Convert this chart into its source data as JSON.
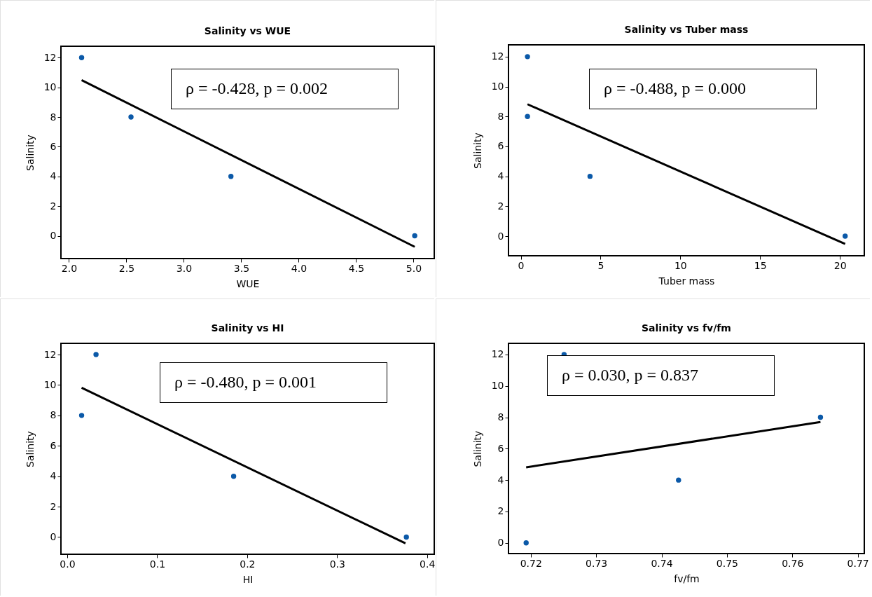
{
  "chart_data": [
    {
      "type": "scatter",
      "title": "Salinity vs WUE",
      "xlabel": "WUE",
      "ylabel": "Salinity",
      "xlim": [
        1.93,
        5.18
      ],
      "ylim": [
        -1.53,
        12.77
      ],
      "xticks": [
        {
          "value": 2,
          "label": "2.0"
        },
        2.5,
        {
          "value": 3,
          "label": "3.0"
        },
        3.5,
        {
          "value": 4,
          "label": "4.0"
        },
        4.5,
        {
          "value": 5,
          "label": "5.0"
        }
      ],
      "yticks": [
        0,
        2,
        4,
        6,
        8,
        10,
        12
      ],
      "grid": false,
      "annotations": [
        "ρ = -0.428, p = 0.002"
      ],
      "series": [
        {
          "marker": "circle",
          "color": "#0b59a8",
          "x": [
            2.11,
            2.54,
            3.41,
            5.01
          ],
          "values": [
            12,
            8,
            4,
            0
          ]
        },
        {
          "type": "line",
          "color": "#000000",
          "x": [
            2.11,
            5.01
          ],
          "values": [
            10.49,
            -0.74
          ]
        }
      ]
    },
    {
      "type": "scatter",
      "title": "Salinity vs Tuber mass",
      "xlabel": "Tuber mass",
      "ylabel": "Salinity",
      "xlim": [
        -0.77,
        21.53
      ],
      "ylim": [
        -1.31,
        12.79
      ],
      "xticks": [
        0,
        5,
        10,
        15,
        20
      ],
      "yticks": [
        0,
        2,
        4,
        6,
        8,
        10,
        12
      ],
      "grid": false,
      "annotations": [
        "ρ = -0.488, p = 0.000"
      ],
      "series": [
        {
          "marker": "circle",
          "color": "#0b59a8",
          "x": [
            0.42,
            0.42,
            4.34,
            20.33
          ],
          "values": [
            12,
            8,
            4,
            0
          ]
        },
        {
          "type": "line",
          "color": "#000000",
          "x": [
            0.42,
            20.33
          ],
          "values": [
            8.82,
            -0.52
          ]
        }
      ]
    },
    {
      "type": "scatter",
      "title": "Salinity vs HI",
      "xlabel": "HI",
      "ylabel": "Salinity",
      "xlim": [
        -0.007,
        0.408
      ],
      "ylim": [
        -1.13,
        12.74
      ],
      "xticks": [
        {
          "value": 0,
          "label": "0.0"
        },
        0.1,
        0.2,
        0.3,
        0.4
      ],
      "yticks": [
        0,
        2,
        4,
        6,
        8,
        10,
        12
      ],
      "grid": false,
      "annotations": [
        "ρ = -0.480, p = 0.001"
      ],
      "series": [
        {
          "marker": "circle",
          "color": "#0b59a8",
          "x": [
            0.016,
            0.032,
            0.185,
            0.377
          ],
          "values": [
            8,
            12,
            4,
            0
          ]
        },
        {
          "type": "line",
          "color": "#000000",
          "x": [
            0.016,
            0.376
          ],
          "values": [
            9.82,
            -0.41
          ]
        }
      ]
    },
    {
      "type": "scatter",
      "title": "Salinity vs fv/fm",
      "xlabel": "fv/fm",
      "ylabel": "Salinity",
      "xlim": [
        0.7166,
        0.771
      ],
      "ylim": [
        -0.68,
        12.71
      ],
      "xticks": [
        0.72,
        0.73,
        0.74,
        0.75,
        0.76,
        0.77
      ],
      "yticks": [
        0,
        2,
        4,
        6,
        8,
        10,
        12
      ],
      "grid": false,
      "annotations": [
        "ρ = 0.030, p = 0.837"
      ],
      "series": [
        {
          "marker": "circle",
          "color": "#0b59a8",
          "x": [
            0.7193,
            0.7251,
            0.7426,
            0.7643
          ],
          "values": [
            0,
            12,
            4,
            8
          ]
        },
        {
          "type": "line",
          "color": "#000000",
          "x": [
            0.7193,
            0.7643
          ],
          "values": [
            4.81,
            7.7
          ]
        }
      ]
    }
  ]
}
